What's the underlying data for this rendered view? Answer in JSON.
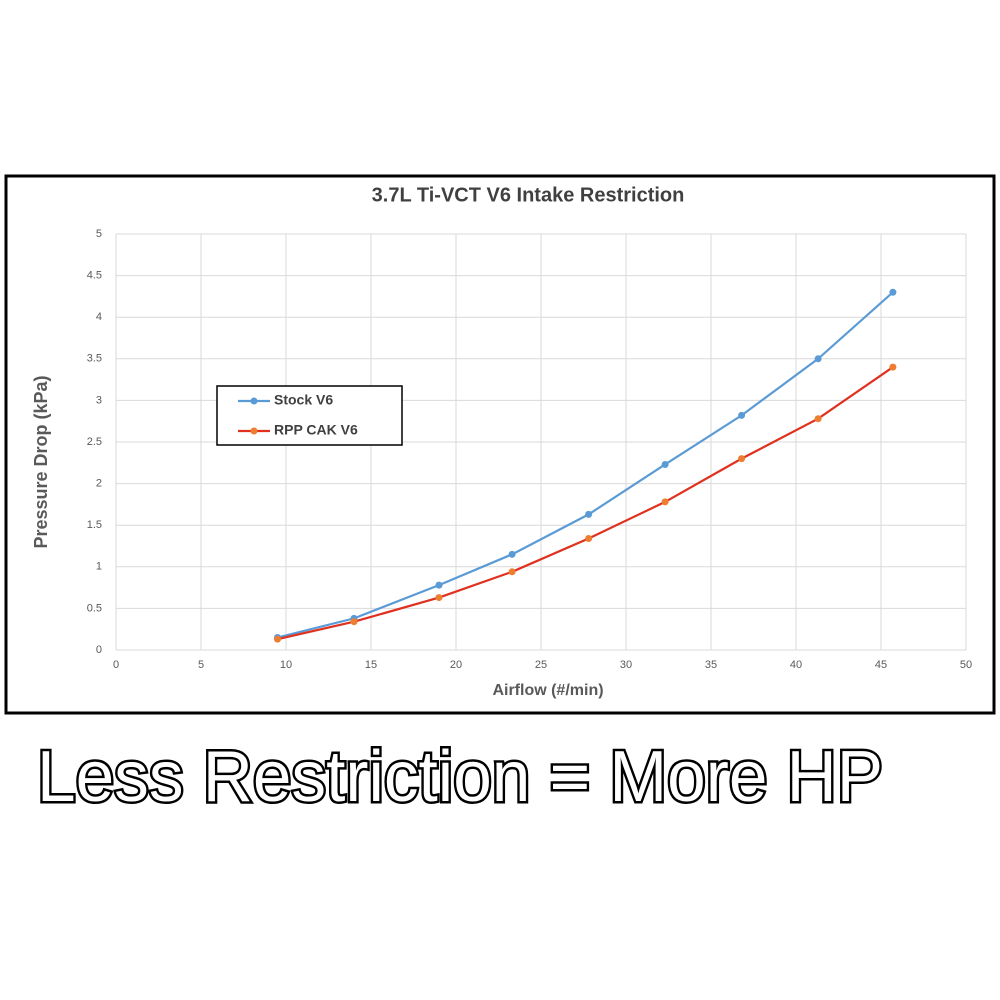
{
  "chart_data": {
    "type": "line",
    "title": "3.7L Ti-VCT V6 Intake Restriction",
    "x_label": "Airflow (#/min)",
    "y_label": "Pressure Drop (kPa)",
    "x": [
      9.5,
      14,
      19,
      23.3,
      27.8,
      32.3,
      36.8,
      41.3,
      45.7
    ],
    "series": [
      {
        "name": "Stock V6",
        "color": "#5b9bd5",
        "marker_color": "#5b9bd5",
        "values": [
          0.15,
          0.38,
          0.78,
          1.15,
          1.63,
          2.23,
          2.82,
          3.5,
          4.3
        ]
      },
      {
        "name": "RPP CAK V6",
        "color": "#e0301e",
        "marker_color": "#ed7d31",
        "values": [
          0.13,
          0.34,
          0.63,
          0.94,
          1.34,
          1.78,
          2.3,
          2.78,
          3.4
        ]
      }
    ],
    "xlim": [
      0,
      50
    ],
    "xticks": [
      0,
      5,
      10,
      15,
      20,
      25,
      30,
      35,
      40,
      45,
      50
    ],
    "ylim": [
      0,
      5
    ],
    "yticks": [
      0,
      0.5,
      1,
      1.5,
      2,
      2.5,
      3,
      3.5,
      4,
      4.5,
      5
    ],
    "grid": true,
    "legend": "left"
  },
  "caption": "Less Restriction = More HP"
}
